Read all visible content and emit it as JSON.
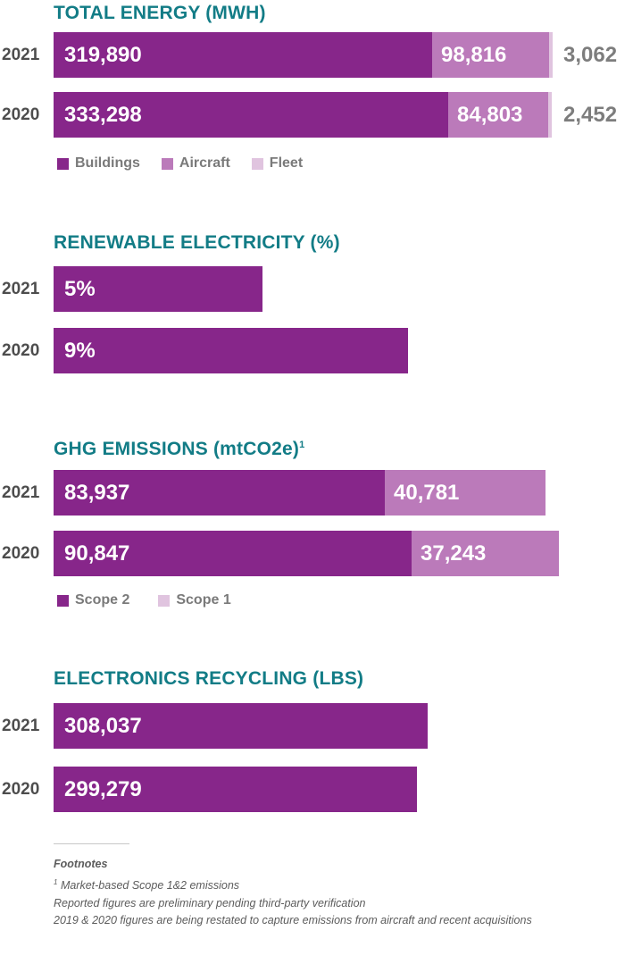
{
  "chart_data": [
    {
      "type": "bar",
      "orientation": "horizontal",
      "stacked": true,
      "title": "TOTAL ENERGY (MWH)",
      "categories": [
        "2021",
        "2020"
      ],
      "series": [
        {
          "name": "Buildings",
          "values": [
            319890,
            333298
          ],
          "labels": [
            "319,890",
            "333,298"
          ],
          "color": "#87268a"
        },
        {
          "name": "Aircraft",
          "values": [
            98816,
            84803
          ],
          "labels": [
            "98,816",
            "84,803"
          ],
          "color": "#bb7aba"
        },
        {
          "name": "Fleet",
          "values": [
            3062,
            2452
          ],
          "labels": [
            "3,062",
            "2,452"
          ],
          "color": "#e0c4df"
        }
      ],
      "legend": [
        "Buildings",
        "Aircraft",
        "Fleet"
      ]
    },
    {
      "type": "bar",
      "orientation": "horizontal",
      "title": "RENEWABLE ELECTRICITY (%)",
      "categories": [
        "2021",
        "2020"
      ],
      "series": [
        {
          "values": [
            5,
            9
          ],
          "labels": [
            "5%",
            "9%"
          ],
          "color": "#87268a"
        }
      ]
    },
    {
      "type": "bar",
      "orientation": "horizontal",
      "stacked": true,
      "title": "GHG EMISSIONS (mtCO2e)",
      "title_sup": "1",
      "categories": [
        "2021",
        "2020"
      ],
      "series": [
        {
          "name": "Scope 2",
          "values": [
            83937,
            90847
          ],
          "labels": [
            "83,937",
            "90,847"
          ],
          "color": "#87268a"
        },
        {
          "name": "Scope 1",
          "values": [
            40781,
            37243
          ],
          "labels": [
            "40,781",
            "37,243"
          ],
          "color": "#bb7aba"
        }
      ],
      "legend": [
        "Scope 2",
        "Scope 1"
      ]
    },
    {
      "type": "bar",
      "orientation": "horizontal",
      "title": "ELECTRONICS RECYCLING (LBS)",
      "categories": [
        "2021",
        "2020"
      ],
      "series": [
        {
          "values": [
            308037,
            299279
          ],
          "labels": [
            "308,037",
            "299,279"
          ],
          "color": "#87268a"
        }
      ]
    }
  ],
  "footnotes": {
    "heading": "Footnotes",
    "note1_marker": "1",
    "note1_text": "Market-based Scope 1&2 emissions",
    "note2": "Reported figures are preliminary pending third-party verification",
    "note3": "2019 & 2020 figures are being restated to capture emissions from aircraft and recent acquisitions"
  }
}
